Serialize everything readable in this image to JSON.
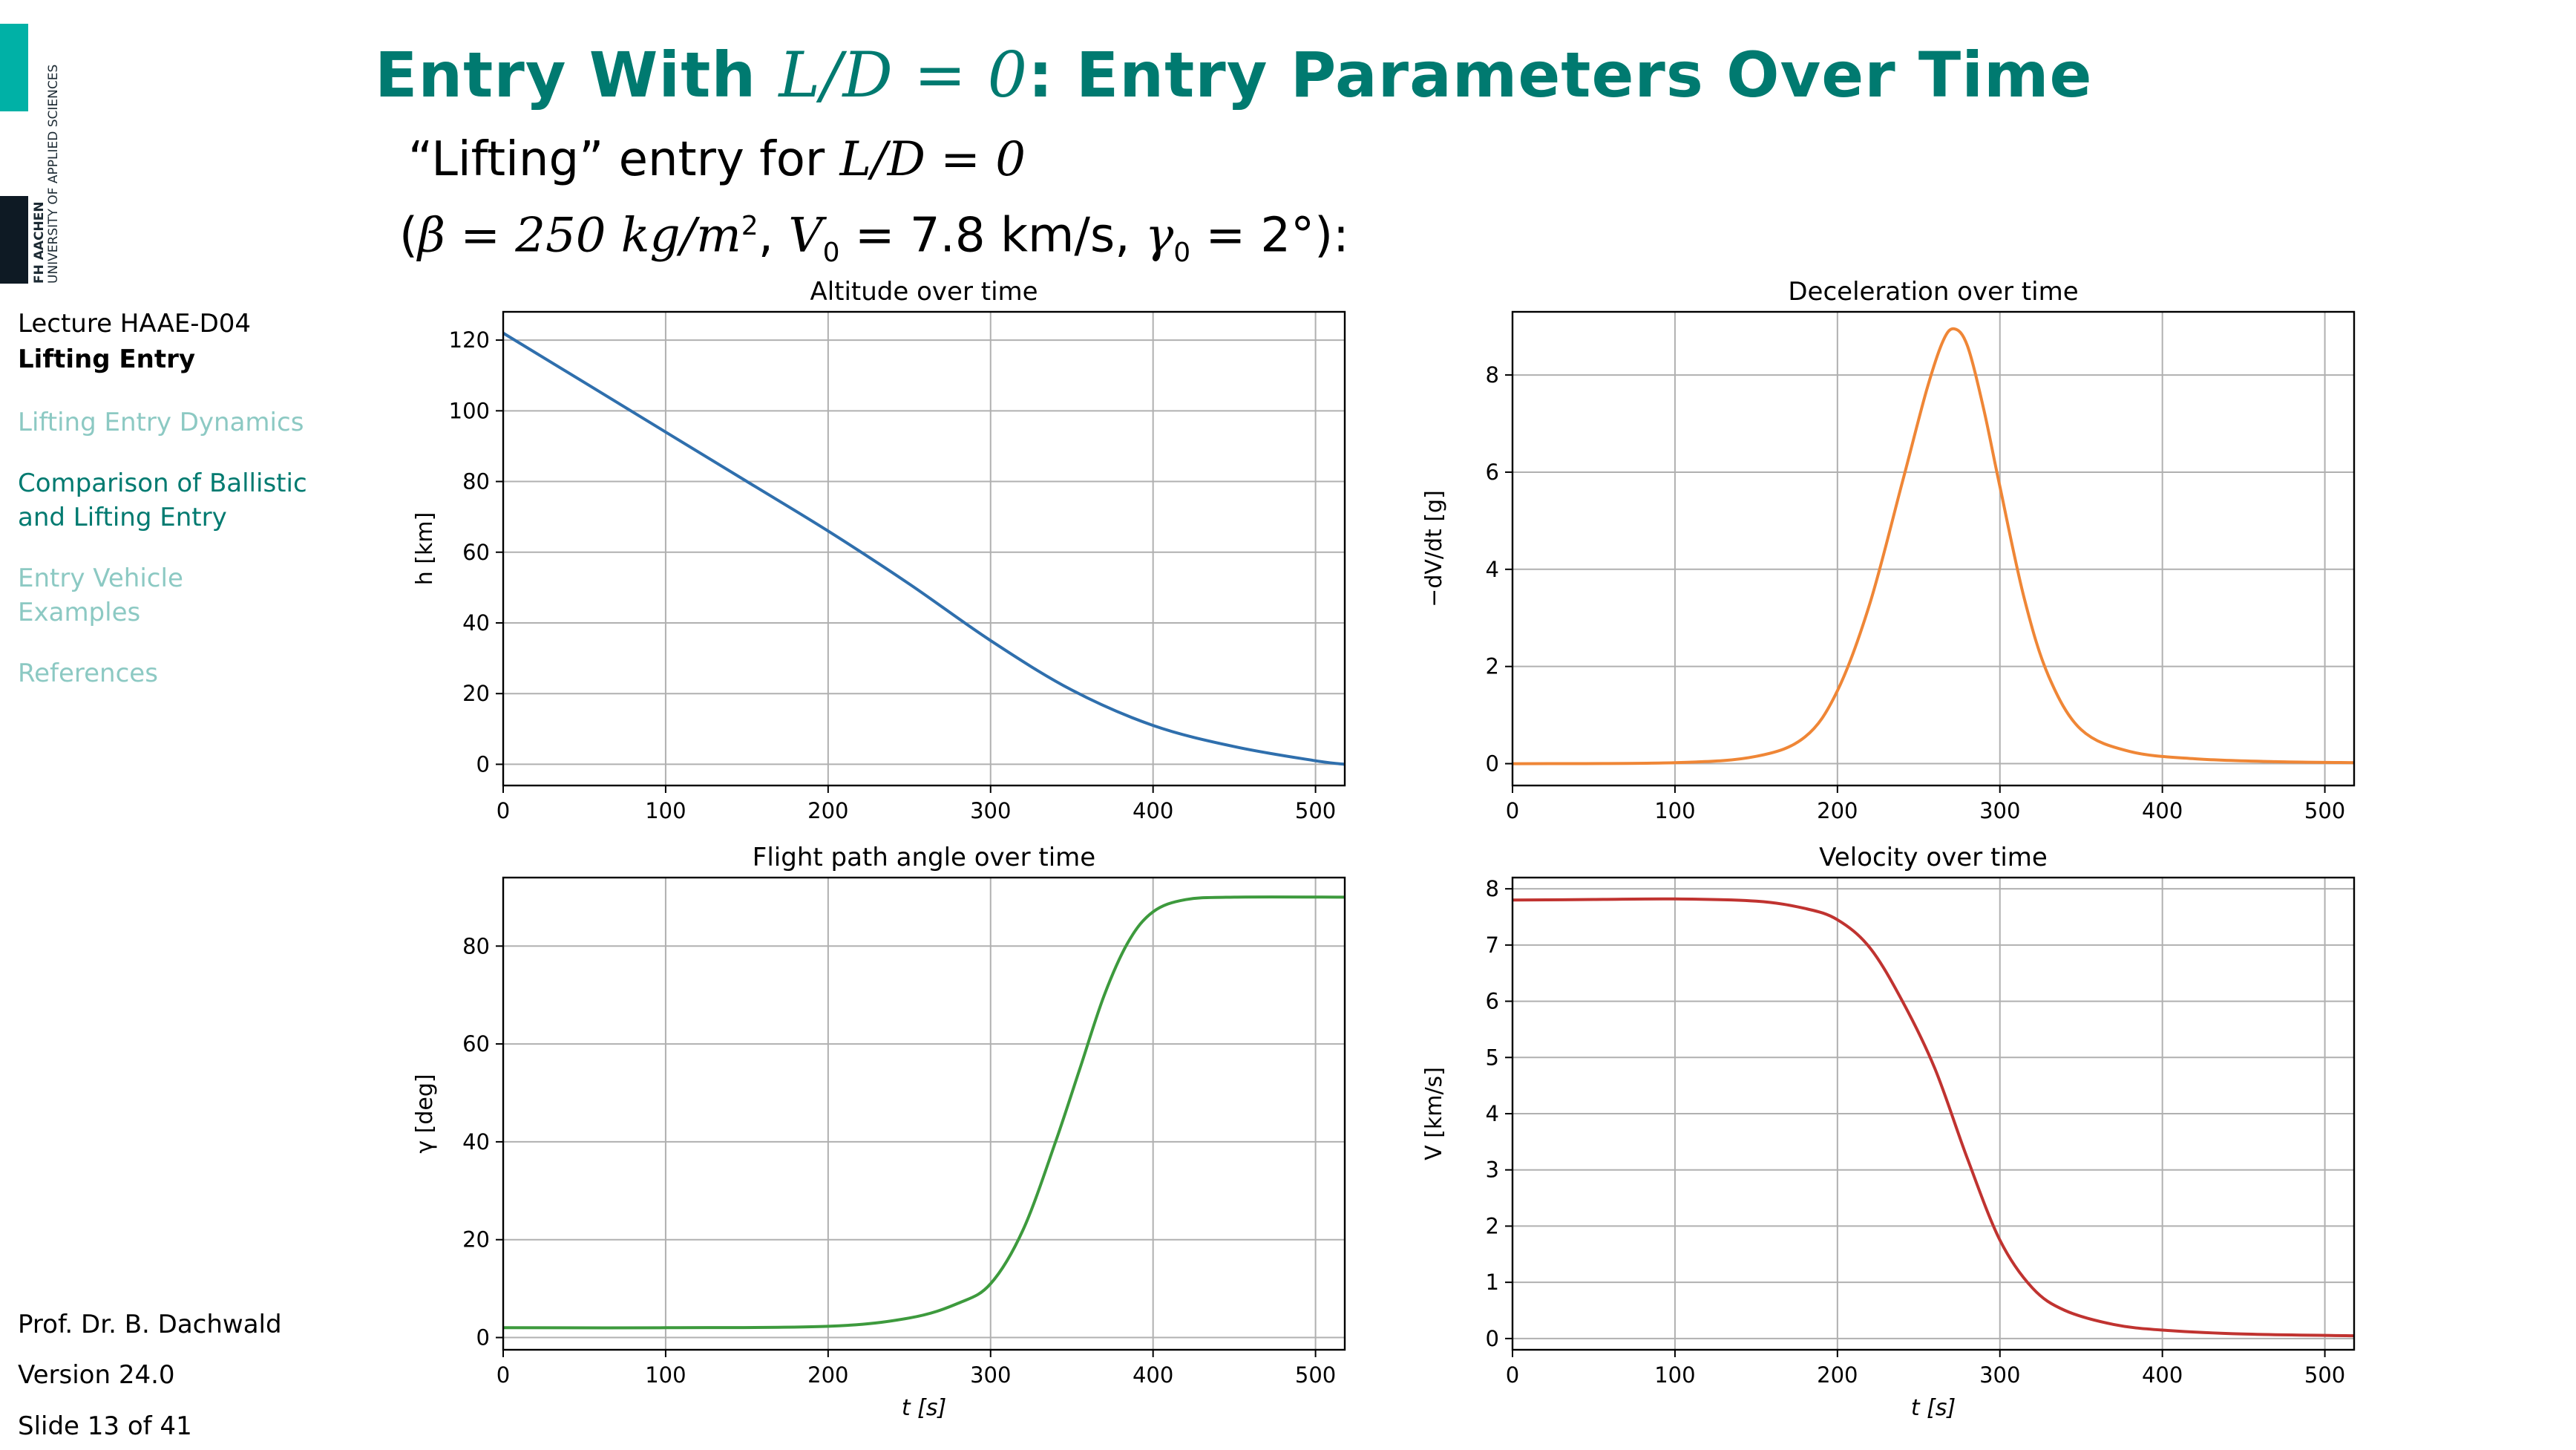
{
  "slide": {
    "title_prefix": "Entry With ",
    "title_math": "L/D = 0",
    "title_suffix": ": Entry Parameters Over Time",
    "subtitle_line1_prefix": "“Lifting” entry for ",
    "subtitle_line1_math": "L/D = 0",
    "subtitle_line2_open": "(",
    "subtitle_beta": "β = 250 kg/m",
    "subtitle_beta_sup": "2",
    "subtitle_v0_sym": "V",
    "subtitle_v0_sub": "0",
    "subtitle_v0_val": " = 7.8 km/s, ",
    "subtitle_g0_sym": "γ",
    "subtitle_g0_sub": "0",
    "subtitle_g0_val": " = 2°):"
  },
  "logo": {
    "line1": "FH AACHEN",
    "line2": "UNIVERSITY OF APPLIED SCIENCES",
    "color_teal": "#00b1a6",
    "color_dark": "#0e1a24"
  },
  "sidebar": {
    "lecture": "Lecture HAAE-D04",
    "topic": "Lifting Entry",
    "items": [
      {
        "label": "Lifting Entry Dynamics",
        "state": "inactive"
      },
      {
        "label": "Comparison of Ballistic and Lifting Entry",
        "state": "active"
      },
      {
        "label": "Entry Vehicle Examples",
        "state": "inactive"
      },
      {
        "label": "References",
        "state": "inactive"
      }
    ]
  },
  "footer": {
    "author": "Prof. Dr. B. Dachwald",
    "version": "Version 24.0",
    "slide_number": "Slide 13 of 41"
  },
  "chart_data": [
    {
      "type": "line",
      "title": "Altitude over time",
      "xlabel": "",
      "ylabel": "h [km]",
      "xlim": [
        0,
        518
      ],
      "ylim": [
        -6,
        128
      ],
      "xticks": [
        0,
        100,
        200,
        300,
        400,
        500
      ],
      "yticks": [
        0,
        20,
        40,
        60,
        80,
        100,
        120
      ],
      "grid": true,
      "color": "#2f6fad",
      "x": [
        0,
        50,
        100,
        150,
        200,
        250,
        300,
        350,
        400,
        450,
        500,
        518
      ],
      "y": [
        122,
        108,
        94,
        80,
        66,
        51,
        35,
        21,
        11,
        5,
        1,
        0
      ]
    },
    {
      "type": "line",
      "title": "Deceleration over time",
      "xlabel": "",
      "ylabel": "−dV/dt [g]",
      "xlim": [
        0,
        518
      ],
      "ylim": [
        -0.45,
        9.3
      ],
      "xticks": [
        0,
        100,
        200,
        300,
        400,
        500
      ],
      "yticks": [
        0,
        2,
        4,
        6,
        8
      ],
      "grid": true,
      "color": "#ef8636",
      "x": [
        0,
        100,
        150,
        180,
        200,
        220,
        240,
        255,
        265,
        272,
        280,
        290,
        300,
        315,
        330,
        350,
        380,
        420,
        470,
        518
      ],
      "y": [
        0,
        0.02,
        0.15,
        0.55,
        1.5,
        3.3,
        5.8,
        7.7,
        8.7,
        8.95,
        8.6,
        7.3,
        5.7,
        3.4,
        1.8,
        0.7,
        0.25,
        0.1,
        0.04,
        0.02
      ]
    },
    {
      "type": "line",
      "title": "Flight path angle over time",
      "xlabel": "t [s]",
      "ylabel": "γ [deg]",
      "xlim": [
        0,
        518
      ],
      "ylim": [
        -2.5,
        94
      ],
      "xticks": [
        0,
        100,
        200,
        300,
        400,
        500
      ],
      "yticks": [
        0,
        20,
        40,
        60,
        80
      ],
      "grid": true,
      "color": "#3d9a3d",
      "x": [
        0,
        100,
        200,
        250,
        280,
        300,
        320,
        340,
        355,
        370,
        385,
        400,
        420,
        450,
        518
      ],
      "y": [
        2,
        2,
        2.3,
        4,
        7,
        11,
        22,
        40,
        55,
        70,
        81,
        87,
        89.5,
        90,
        90
      ]
    },
    {
      "type": "line",
      "title": "Velocity over time",
      "xlabel": "t [s]",
      "ylabel": "V [km/s]",
      "xlim": [
        0,
        518
      ],
      "ylim": [
        -0.2,
        8.2
      ],
      "xticks": [
        0,
        100,
        200,
        300,
        400,
        500
      ],
      "yticks": [
        0,
        1,
        2,
        3,
        4,
        5,
        6,
        7,
        8
      ],
      "grid": true,
      "color": "#c03330",
      "x": [
        0,
        50,
        100,
        150,
        180,
        200,
        220,
        240,
        260,
        280,
        300,
        320,
        340,
        370,
        400,
        450,
        518
      ],
      "y": [
        7.8,
        7.81,
        7.82,
        7.78,
        7.65,
        7.45,
        6.95,
        6.0,
        4.8,
        3.2,
        1.75,
        0.9,
        0.5,
        0.25,
        0.15,
        0.08,
        0.05
      ]
    }
  ]
}
